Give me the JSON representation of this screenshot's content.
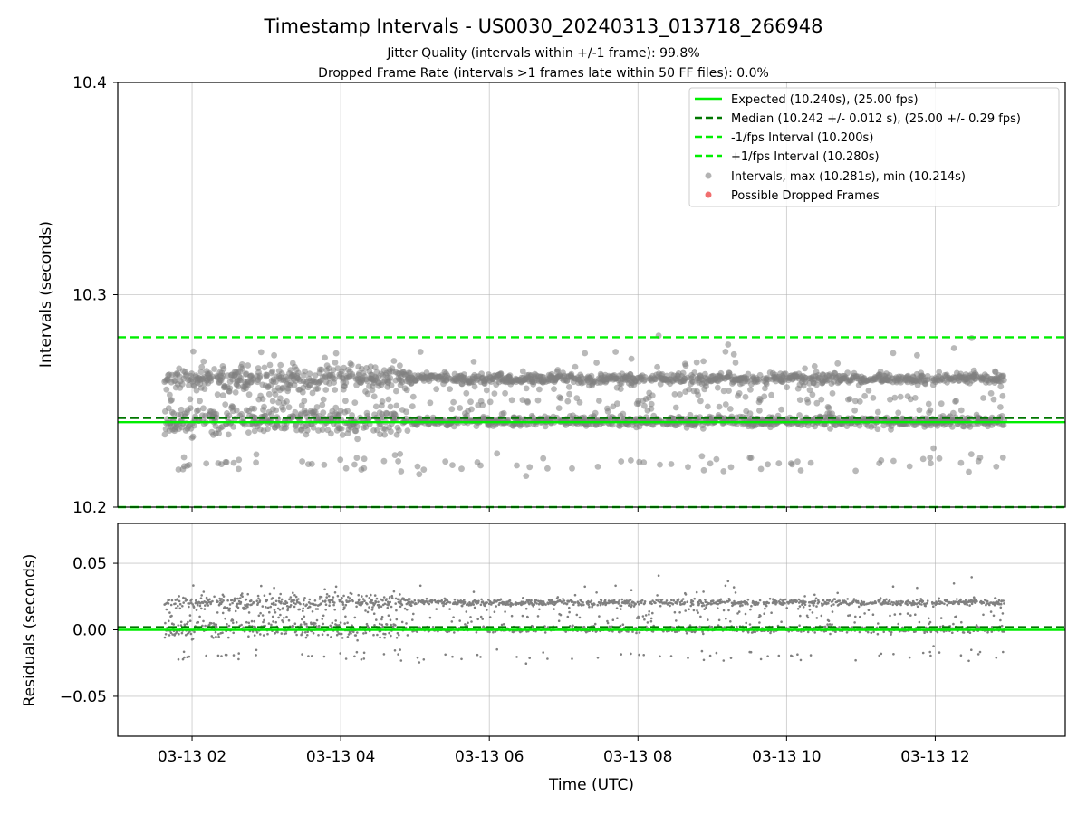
{
  "header": {
    "title": "Timestamp Intervals - US0030_20240313_013718_266948",
    "subtitle_1": "Jitter Quality (intervals within +/-1 frame): 99.8%",
    "subtitle_2": "Dropped Frame Rate (intervals >1 frames late within 50 FF files): 0.0%"
  },
  "chart_data": [
    {
      "type": "scatter",
      "ylabel": "Intervals (seconds)",
      "xlabel": "",
      "ylim": [
        10.2,
        10.4
      ],
      "yticks": [
        "10.2",
        "10.3",
        "10.4"
      ],
      "grid": true,
      "legend_position": "top-right",
      "date": "2024-03-13",
      "x_range_hours": [
        1.0,
        13.75
      ],
      "x_tick_hours": [
        2,
        4,
        6,
        8,
        10,
        12
      ],
      "x_tick_labels": [
        "03-13 02",
        "03-13 04",
        "03-13 06",
        "03-13 08",
        "03-13 10",
        "03-13 12"
      ],
      "series_start_hour": 1.63,
      "series_end_hour": 12.93,
      "reference_lines": [
        {
          "name": "Expected (10.240s), (25.00 fps)",
          "y": 10.24,
          "style": "solid",
          "color": "#00ee00"
        },
        {
          "name": "Median (10.242 +/- 0.012 s), (25.00 +/- 0.29 fps)",
          "y": 10.242,
          "style": "dashed",
          "color": "#007700"
        },
        {
          "name": "-1/fps Interval (10.200s)",
          "y": 10.2,
          "style": "dashed",
          "color": "#00ee00"
        },
        {
          "name": "+1/fps Interval (10.280s)",
          "y": 10.28,
          "style": "dashed",
          "color": "#00ee00"
        }
      ],
      "series": [
        {
          "name": "Intervals, max (10.281s), min (10.214s)",
          "color": "#808080",
          "max": 10.281,
          "min": 10.214
        },
        {
          "name": "Possible Dropped Frames",
          "color": "#ee5555",
          "count": 0
        }
      ]
    },
    {
      "type": "scatter",
      "ylabel": "Residuals (seconds)",
      "xlabel": "Time (UTC)",
      "ylim": [
        -0.08,
        0.08
      ],
      "yticks": [
        "0.05",
        "0.00",
        "−0.05"
      ],
      "ytick_values": [
        0.05,
        0.0,
        -0.05
      ],
      "grid": true,
      "reference_lines": [
        {
          "y": 0.0,
          "style": "solid",
          "color": "#00ee00"
        },
        {
          "y": 0.002,
          "style": "dashed",
          "color": "#007700"
        }
      ],
      "series": [
        {
          "color": "#808080",
          "marker": "small-dot"
        }
      ]
    }
  ]
}
